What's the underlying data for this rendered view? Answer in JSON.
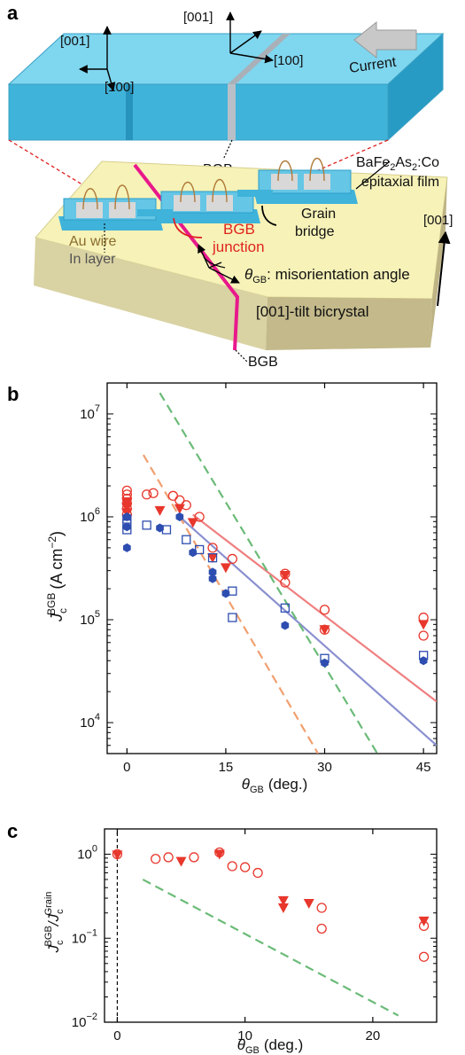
{
  "panel_a": {
    "letter": "a",
    "dir_001_left": "[001]",
    "dir_100_left": "[100]",
    "dir_001_right": "[001]",
    "dir_100_right": "[100]",
    "current": "Current",
    "bgb_top": "BGB",
    "film_line1": "BaFe",
    "film_line1_sub": "2",
    "film_line1_mid": "As",
    "film_line1_sub2": "2",
    "film_line1_end": ":Co",
    "film_line2": "epitaxial film",
    "au_wire": "Au wire",
    "in_layer": "In layer",
    "bgb_junction_1": "BGB",
    "bgb_junction_2": "junction",
    "grain_1": "Grain",
    "grain_2": "bridge",
    "dir_001_side": "[001]",
    "theta": "θ",
    "theta_sub": "GB",
    "theta_desc": ": misorientation angle",
    "bicrystal": "[001]-tilt bicrystal",
    "bgb_bottom": "BGB",
    "colors": {
      "film": "#5fc4e0",
      "substrate_top": "#f6f2b8",
      "substrate_side": "#c9c08f",
      "bgb_line": "#e8198b"
    }
  },
  "chart_data": [
    {
      "panel": "b",
      "type": "scatter",
      "ylabel_main": "J",
      "ylabel_sub": "c",
      "ylabel_sup": "BGB",
      "ylabel_unit": "(A cm",
      "ylabel_unit_sup": "−2",
      "ylabel_unit_end": ")",
      "xlabel_main": "θ",
      "xlabel_sub": "GB",
      "xlabel_unit": "(deg.)",
      "y_scale": "log",
      "xlim": [
        -3,
        47
      ],
      "ylim": [
        5000,
        20000000
      ],
      "xticks": [
        "0",
        "15",
        "30",
        "45"
      ],
      "xtick_values": [
        0,
        15,
        30,
        45
      ],
      "yticks": [
        {
          "base": "10",
          "exp": "4",
          "value": 10000
        },
        {
          "base": "10",
          "exp": "5",
          "value": 100000
        },
        {
          "base": "10",
          "exp": "6",
          "value": 1000000
        },
        {
          "base": "10",
          "exp": "7",
          "value": 10000000
        }
      ],
      "series": [
        {
          "marker": "open-circle",
          "color": "#e8372c",
          "points": [
            [
              0,
              1800000
            ],
            [
              0,
              1650000
            ],
            [
              0,
              1500000
            ],
            [
              0,
              1350000
            ],
            [
              0,
              1200000
            ],
            [
              0,
              1050000
            ],
            [
              3,
              1650000
            ],
            [
              4,
              1700000
            ],
            [
              7,
              1600000
            ],
            [
              8,
              1450000
            ],
            [
              9,
              1300000
            ],
            [
              11,
              1000000
            ],
            [
              13,
              500000
            ],
            [
              16,
              390000
            ],
            [
              24,
              280000
            ],
            [
              24,
              230000
            ],
            [
              30,
              125000
            ],
            [
              30,
              80000
            ],
            [
              45,
              105000
            ],
            [
              45,
              70000
            ]
          ]
        },
        {
          "marker": "filled-triangle-down",
          "color": "#e8372c",
          "points": [
            [
              0,
              1400000
            ],
            [
              0,
              1250000
            ],
            [
              0,
              1100000
            ],
            [
              5,
              1150000
            ],
            [
              8,
              1200000
            ],
            [
              10,
              880000
            ],
            [
              13,
              400000
            ],
            [
              15,
              320000
            ],
            [
              24,
              270000
            ],
            [
              30,
              80000
            ],
            [
              45,
              90000
            ]
          ]
        },
        {
          "marker": "open-square",
          "color": "#2d4db0",
          "points": [
            [
              0,
              950000
            ],
            [
              0,
              850000
            ],
            [
              0,
              750000
            ],
            [
              3,
              830000
            ],
            [
              6,
              750000
            ],
            [
              9,
              600000
            ],
            [
              11,
              480000
            ],
            [
              13,
              400000
            ],
            [
              16,
              190000
            ],
            [
              16,
              105000
            ],
            [
              24,
              130000
            ],
            [
              30,
              42000
            ],
            [
              45,
              45000
            ]
          ]
        },
        {
          "marker": "filled-hexagon",
          "color": "#2d4db0",
          "points": [
            [
              0,
              1000000
            ],
            [
              0,
              800000
            ],
            [
              0,
              500000
            ],
            [
              5,
              780000
            ],
            [
              8,
              1000000
            ],
            [
              10,
              450000
            ],
            [
              13,
              290000
            ],
            [
              13,
              250000
            ],
            [
              15,
              180000
            ],
            [
              24,
              88000
            ],
            [
              30,
              38000
            ],
            [
              45,
              40000
            ]
          ]
        }
      ],
      "lines": [
        {
          "style": "solid",
          "color": "#ef7f80",
          "from": [
            10,
            1050000
          ],
          "to": [
            47,
            16000
          ]
        },
        {
          "style": "solid",
          "color": "#8a8fd0",
          "from": [
            8,
            1000000
          ],
          "to": [
            47,
            6000
          ]
        },
        {
          "style": "dashed",
          "color": "#6bbb78",
          "from": [
            5,
            16000000
          ],
          "to": [
            38,
            5000
          ]
        },
        {
          "style": "dashed",
          "color": "#f0a070",
          "from": [
            2.5,
            4000000
          ],
          "to": [
            29,
            5000
          ]
        }
      ]
    },
    {
      "panel": "c",
      "type": "scatter",
      "ylabel_main": "J",
      "ylabel_sub": "c",
      "ylabel_sup": "BGB",
      "ylabel_div": "/J",
      "ylabel_sub2": "c",
      "ylabel_sup2": "Grain",
      "xlabel_main": "θ",
      "xlabel_sub": "GB",
      "xlabel_unit": "(deg.)",
      "y_scale": "log",
      "xlim": [
        -1,
        25
      ],
      "ylim": [
        0.01,
        2
      ],
      "xticks": [
        "0",
        "10",
        "20"
      ],
      "xtick_values": [
        0,
        10,
        20
      ],
      "yticks": [
        {
          "base": "10",
          "exp": "−2",
          "value": 0.01
        },
        {
          "base": "10",
          "exp": "−1",
          "value": 0.1
        },
        {
          "base": "10",
          "exp": "0",
          "value": 1
        }
      ],
      "series": [
        {
          "marker": "open-circle",
          "color": "#e8372c",
          "points": [
            [
              0,
              1.0
            ],
            [
              3,
              0.88
            ],
            [
              4,
              0.92
            ],
            [
              6,
              0.92
            ],
            [
              8,
              1.05
            ],
            [
              9,
              0.72
            ],
            [
              10,
              0.7
            ],
            [
              11,
              0.6
            ],
            [
              16,
              0.23
            ],
            [
              16,
              0.13
            ],
            [
              24,
              0.14
            ],
            [
              24,
              0.06
            ]
          ]
        },
        {
          "marker": "filled-triangle-down",
          "color": "#e8372c",
          "points": [
            [
              0,
              0.98
            ],
            [
              5,
              0.82
            ],
            [
              8,
              1.0
            ],
            [
              13,
              0.28
            ],
            [
              13,
              0.23
            ],
            [
              15,
              0.26
            ],
            [
              24,
              0.16
            ]
          ]
        }
      ],
      "lines": [
        {
          "style": "dashed",
          "color": "#6bbb78",
          "from": [
            2,
            0.5
          ],
          "to": [
            22,
            0.012
          ]
        },
        {
          "style": "dashed",
          "color": "#000000",
          "from": [
            0,
            0.01
          ],
          "to": [
            0,
            2
          ]
        }
      ]
    }
  ]
}
